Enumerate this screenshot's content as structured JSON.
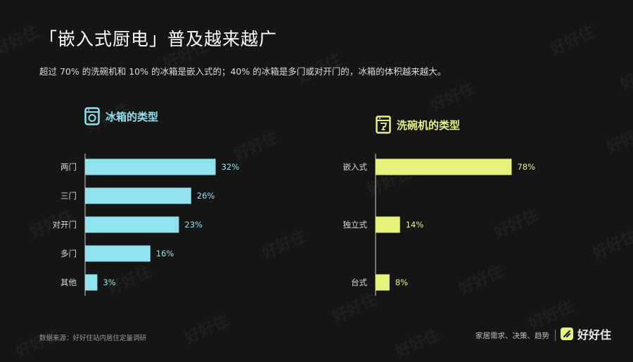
{
  "title": "「嵌入式厨电」普及越来越广",
  "subtitle": "超过 70% 的洗碗机和 10% 的冰箱是嵌入式的；40% 的冰箱是多门或对开门的，冰箱的体积越来越大。",
  "watermark": "好好住",
  "colors": {
    "background": "#151515",
    "fridge": "#8fe3ef",
    "dishwasher": "#e6f27a",
    "axis": "#cfcfcf"
  },
  "footer": {
    "source": "数据来源：好好住站内居住定量调研",
    "tagline": "家居需求、决策、趋势",
    "brand": "好好住"
  },
  "chart_data": [
    {
      "type": "bar",
      "orientation": "horizontal",
      "title": "冰箱的类型",
      "icon": "fridge-icon",
      "categories": [
        "两门",
        "三门",
        "对开门",
        "多门",
        "其他"
      ],
      "values": [
        32,
        26,
        23,
        16,
        3
      ],
      "labels": [
        "32%",
        "26%",
        "23%",
        "16%",
        "3%"
      ],
      "color": "#8fe3ef",
      "xlim": [
        0,
        100
      ]
    },
    {
      "type": "bar",
      "orientation": "horizontal",
      "title": "洗碗机的类型",
      "icon": "dishwasher-icon",
      "categories": [
        "嵌入式",
        "独立式",
        "台式"
      ],
      "values": [
        78,
        14,
        8
      ],
      "labels": [
        "78%",
        "14%",
        "8%"
      ],
      "color": "#e6f27a",
      "xlim": [
        0,
        100
      ]
    }
  ]
}
